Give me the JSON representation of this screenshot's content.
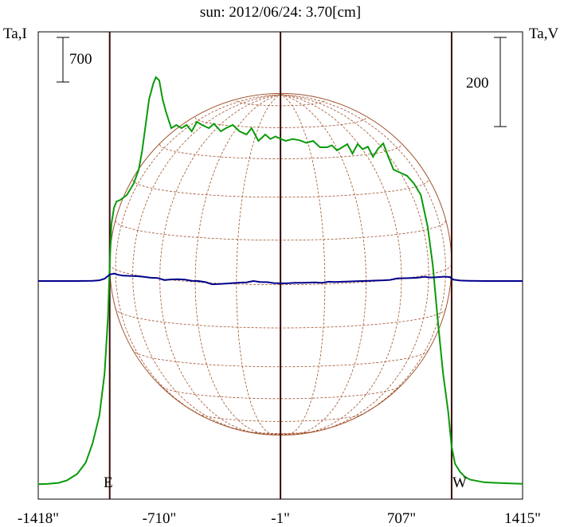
{
  "chart_data": {
    "type": "line",
    "title": "sun: 2012/06/24: 3.70[cm]",
    "left_axis_label": "Ta,I",
    "right_axis_label": "Ta,V",
    "left_scale_label": "700",
    "right_scale_label": "200",
    "east_label": "E",
    "west_label": "W",
    "x_ticks": [
      "-1418\"",
      "-710\"",
      "-1\"",
      "707\"",
      "1415\""
    ],
    "x_tick_values": [
      -1418,
      -710,
      -1,
      707,
      1415
    ],
    "xlim": [
      -1418,
      1415
    ],
    "solar_limb_arcsec": 1000,
    "vertical_lines_arcsec": [
      -1000,
      -1,
      1000
    ],
    "colors": {
      "title": "#1a1a80",
      "intensity": "#0a9a0a",
      "polarization": "#00008b",
      "limb": "#a0522d",
      "frame": "#000000",
      "markers": "#3a0a0a"
    },
    "series": [
      {
        "name": "I",
        "x": [
          -1418,
          -1360,
          -1300,
          -1250,
          -1190,
          -1140,
          -1100,
          -1060,
          -1030,
          -1010,
          -1000,
          -990,
          -975,
          -960,
          -940,
          -900,
          -860,
          -830,
          -810,
          -790,
          -770,
          -745,
          -730,
          -710,
          -690,
          -670,
          -640,
          -610,
          -580,
          -550,
          -520,
          -490,
          -460,
          -420,
          -390,
          -350,
          -320,
          -280,
          -240,
          -200,
          -170,
          -130,
          -90,
          -60,
          -30,
          0,
          30,
          70,
          110,
          150,
          190,
          230,
          270,
          300,
          330,
          360,
          390,
          420,
          450,
          480,
          510,
          540,
          570,
          600,
          630,
          660,
          700,
          740,
          780,
          820,
          860,
          890,
          920,
          950,
          980,
          1000,
          1020,
          1050,
          1080,
          1110,
          1150,
          1190,
          1230,
          1270,
          1310,
          1360,
          1415
        ],
        "values": [
          60,
          65,
          80,
          120,
          220,
          400,
          700,
          1140,
          1800,
          2700,
          3500,
          4150,
          4400,
          4500,
          4520,
          4600,
          4780,
          5000,
          5300,
          5700,
          6100,
          6350,
          6450,
          6400,
          6100,
          5900,
          5650,
          5700,
          5650,
          5700,
          5600,
          5750,
          5700,
          5650,
          5720,
          5600,
          5650,
          5700,
          5600,
          5550,
          5650,
          5450,
          5550,
          5480,
          5520,
          5480,
          5450,
          5480,
          5460,
          5420,
          5450,
          5350,
          5350,
          5380,
          5300,
          5350,
          5400,
          5250,
          5400,
          5320,
          5360,
          5200,
          5330,
          5410,
          5200,
          5000,
          4950,
          4900,
          4780,
          4600,
          4100,
          3500,
          2600,
          1800,
          1200,
          650,
          380,
          250,
          170,
          130,
          110,
          90,
          85,
          80,
          75,
          70,
          65
        ]
      },
      {
        "name": "V",
        "x": [
          -1418,
          -1200,
          -1100,
          -1060,
          -1030,
          -1000,
          -975,
          -950,
          -920,
          -880,
          -840,
          -800,
          -760,
          -720,
          -680,
          -640,
          -600,
          -560,
          -520,
          -480,
          -440,
          -400,
          -360,
          -320,
          -280,
          -240,
          -200,
          -160,
          -120,
          -80,
          -40,
          0,
          40,
          80,
          120,
          160,
          200,
          240,
          280,
          320,
          360,
          400,
          440,
          480,
          520,
          560,
          600,
          640,
          680,
          720,
          760,
          800,
          840,
          880,
          920,
          960,
          990,
          1010,
          1050,
          1100,
          1200,
          1415
        ],
        "values": [
          0,
          0,
          1,
          3,
          10,
          28,
          32,
          27,
          23,
          22,
          21,
          18,
          14,
          13,
          4,
          7,
          8,
          6,
          1,
          0,
          -5,
          -14,
          -13,
          -11,
          -9,
          -7,
          -6,
          0,
          -4,
          -5,
          -9,
          -10,
          -10,
          -8,
          -8,
          -7,
          -6,
          -8,
          -3,
          -4,
          -3,
          -2,
          -1,
          0,
          1,
          2,
          3,
          5,
          11,
          12,
          13,
          14,
          18,
          15,
          17,
          19,
          17,
          6,
          2,
          1,
          0,
          0
        ]
      }
    ]
  }
}
